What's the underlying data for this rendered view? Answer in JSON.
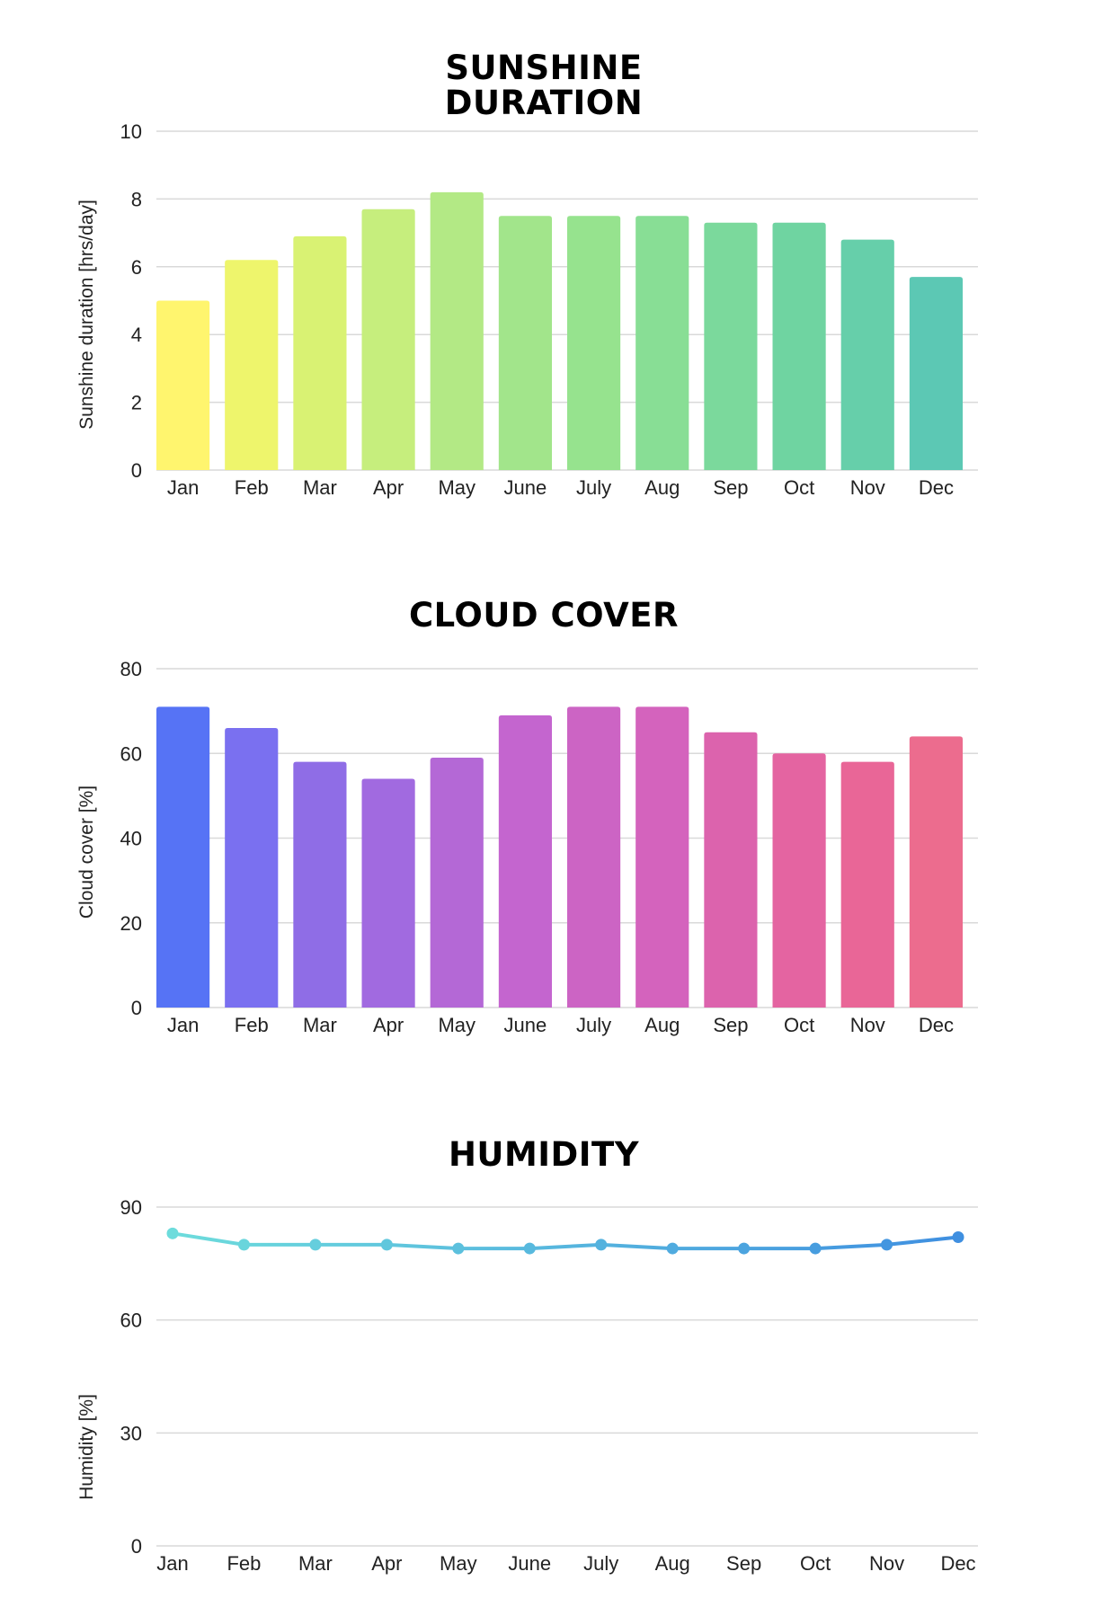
{
  "chart_data": [
    {
      "type": "bar",
      "title": "SUNSHINE DURATION",
      "title_lines": [
        "SUNSHINE",
        "DURATION"
      ],
      "xlabel": "",
      "ylabel": "Sunshine duration [hrs/day]",
      "categories": [
        "Jan",
        "Feb",
        "Mar",
        "Apr",
        "May",
        "June",
        "July",
        "Aug",
        "Sep",
        "Oct",
        "Nov",
        "Dec"
      ],
      "values": [
        5.0,
        6.2,
        6.9,
        7.7,
        8.2,
        7.5,
        7.5,
        7.5,
        7.3,
        7.3,
        6.8,
        5.7
      ],
      "ylim": [
        0,
        10
      ],
      "yticks": [
        0,
        2,
        4,
        6,
        8,
        10
      ],
      "grid": true,
      "colors": [
        "#fff56e",
        "#eef56c",
        "#d9f273",
        "#c6ee7d",
        "#b3e985",
        "#a2e58b",
        "#96e38e",
        "#88de95",
        "#7bd99c",
        "#6fd4a1",
        "#66cfaa",
        "#5cc8b4"
      ]
    },
    {
      "type": "bar",
      "title": "CLOUD COVER",
      "title_lines": [
        "CLOUD COVER"
      ],
      "xlabel": "",
      "ylabel": "Cloud cover [%]",
      "categories": [
        "Jan",
        "Feb",
        "Mar",
        "Apr",
        "May",
        "June",
        "July",
        "Aug",
        "Sep",
        "Oct",
        "Nov",
        "Dec"
      ],
      "values": [
        71,
        66,
        58,
        54,
        59,
        69,
        71,
        71,
        65,
        60,
        58,
        64
      ],
      "ylim": [
        0,
        80
      ],
      "yticks": [
        0,
        20,
        40,
        60,
        80
      ],
      "grid": true,
      "colors": [
        "#5673f5",
        "#7a70f0",
        "#8f6de6",
        "#a16ae0",
        "#b468d6",
        "#c465cf",
        "#cc64c4",
        "#d463bd",
        "#dc63ad",
        "#e464a1",
        "#e96697",
        "#ec6c8e"
      ]
    },
    {
      "type": "line",
      "title": "HUMIDITY",
      "title_lines": [
        "HUMIDITY"
      ],
      "xlabel": "",
      "ylabel": "Humidity [%]",
      "categories": [
        "Jan",
        "Feb",
        "Mar",
        "Apr",
        "May",
        "June",
        "July",
        "Aug",
        "Sep",
        "Oct",
        "Nov",
        "Dec"
      ],
      "values": [
        83,
        80,
        80,
        80,
        79,
        79,
        80,
        79,
        79,
        79,
        80,
        82
      ],
      "ylim": [
        0,
        90
      ],
      "yticks": [
        0,
        30,
        60,
        90
      ],
      "grid": true,
      "colors": [
        "#6ddcdc",
        "#3f8fe0"
      ]
    }
  ]
}
